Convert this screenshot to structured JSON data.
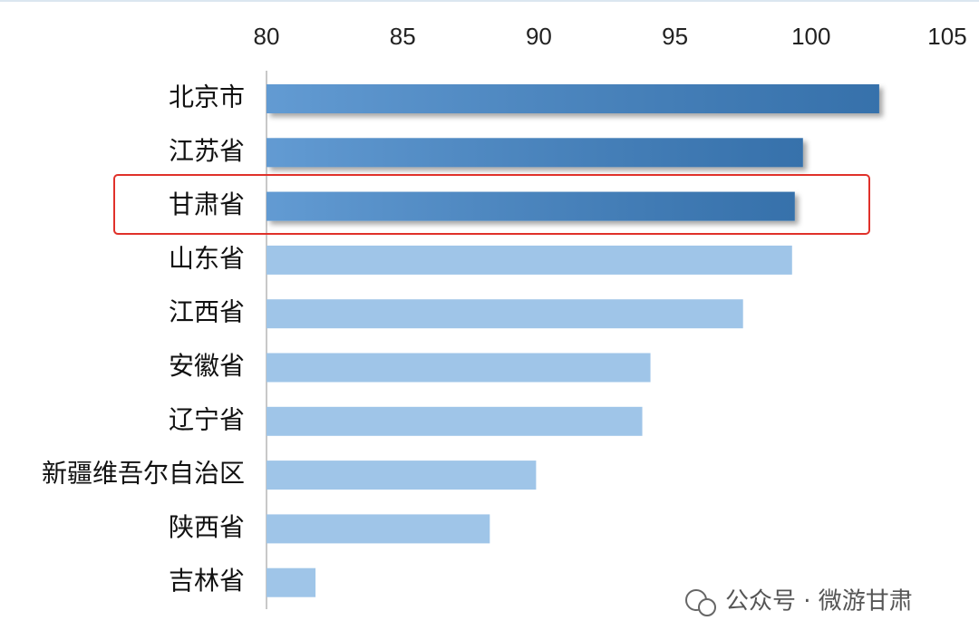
{
  "chart_data": {
    "type": "bar",
    "orientation": "horizontal",
    "categories": [
      "北京市",
      "江苏省",
      "甘肃省",
      "山东省",
      "江西省",
      "安徽省",
      "辽宁省",
      "新疆维吾尔自治区",
      "陕西省",
      "吉林省"
    ],
    "values": [
      102.5,
      99.7,
      99.4,
      99.3,
      97.5,
      94.1,
      93.8,
      89.9,
      88.2,
      81.8
    ],
    "colors": [
      "#3f85c9",
      "#3f85c9",
      "#3f85c9",
      "#9fc5e8",
      "#9fc5e8",
      "#9fc5e8",
      "#9fc5e8",
      "#9fc5e8",
      "#9fc5e8",
      "#9fc5e8"
    ],
    "xlim": [
      80,
      105
    ],
    "xticks": [
      80,
      85,
      90,
      95,
      100,
      105
    ],
    "axis_position": "top",
    "watermark": "公众号 · 微游甘肃"
  }
}
